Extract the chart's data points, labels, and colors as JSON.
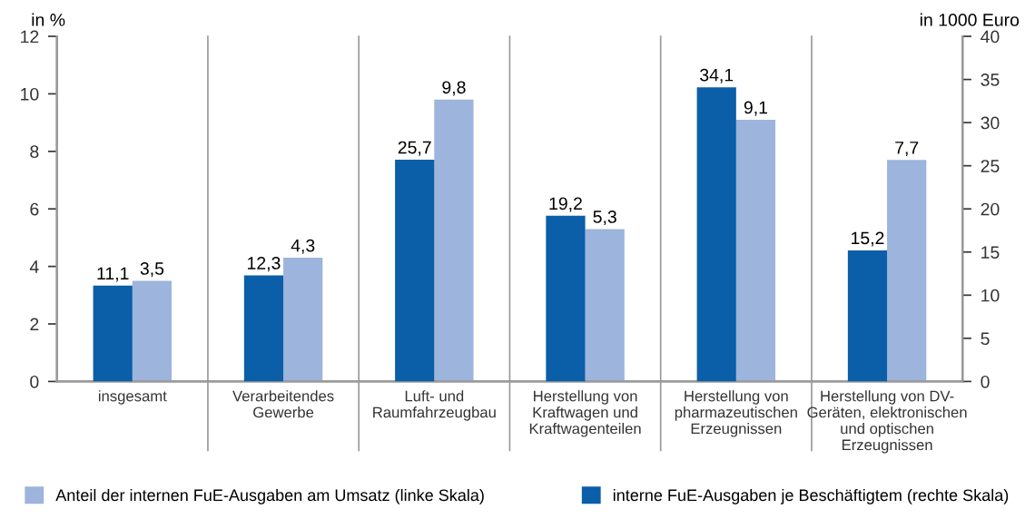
{
  "chart_data": {
    "type": "bar",
    "categories": [
      "insgesamt",
      "Verarbeitendes\nGewerbe",
      "Luft- und\nRaumfahrzeugbau",
      "Herstellung von\nKraftwagen und\nKraftwagenteilen",
      "Herstellung von\npharmazeutischen\nErzeugnissen",
      "Herstellung von DV-\nGeräten, elektronischen\nund optischen\nErzeugnissen"
    ],
    "series": [
      {
        "name": "interne FuE-Ausgaben je Beschäftigtem (rechte Skala)",
        "color": "#0b5ea8",
        "axis": "y2",
        "values": [
          11.1,
          12.3,
          25.7,
          19.2,
          34.1,
          15.2
        ],
        "value_labels": [
          "11,1",
          "12,3",
          "25,7",
          "19,2",
          "34,1",
          "15,2"
        ]
      },
      {
        "name": "Anteil der internen FuE-Ausgaben am Umsatz (linke Skala)",
        "color": "#9db4dc",
        "values": [
          3.5,
          4.3,
          9.8,
          5.3,
          9.1,
          7.7
        ],
        "value_labels": [
          "3,5",
          "4,3",
          "9,8",
          "5,3",
          "9,1",
          "7,7"
        ]
      }
    ],
    "ylabel": "in %",
    "y2label": "in 1000 Euro",
    "ylim": [
      0,
      12
    ],
    "yticks": [
      0,
      2,
      4,
      6,
      8,
      10,
      12
    ],
    "y2lim": [
      0,
      40
    ],
    "y2ticks": [
      0,
      5,
      10,
      15,
      20,
      25,
      30,
      35,
      40
    ],
    "grid": "x",
    "legend": "bottom"
  }
}
